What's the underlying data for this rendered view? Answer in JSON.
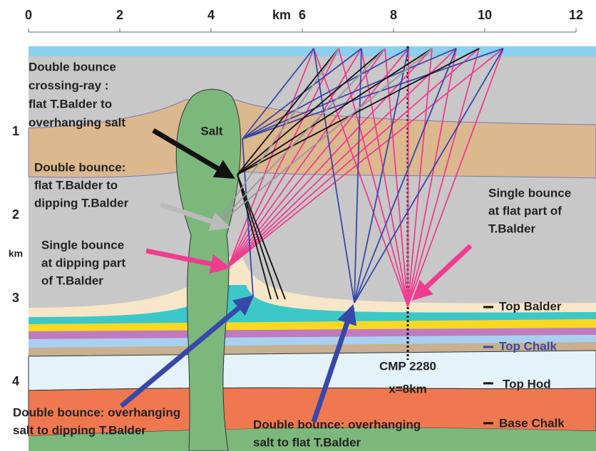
{
  "x_axis": {
    "ticks": [
      0,
      2,
      4,
      6,
      8,
      10,
      12
    ],
    "unit": "km"
  },
  "y_axis": {
    "ticks": [
      1,
      2,
      3,
      4
    ],
    "unit": "km"
  },
  "salt_label": "Salt",
  "annotations": [
    {
      "lines": [
        "Double bounce",
        "crossing-ray :",
        "flat T.Balder to",
        "overhanging salt"
      ]
    },
    {
      "lines": [
        "Double bounce:",
        "flat T.Balder to",
        "dipping T.Balder"
      ]
    },
    {
      "lines": [
        "Single bounce",
        "at dipping part",
        "of T.Balder"
      ]
    },
    {
      "lines": [
        "Single bounce",
        "at flat part of",
        "T.Balder"
      ]
    },
    {
      "lines": [
        "Double bounce: overhanging",
        "salt to dipping T.Balder"
      ]
    },
    {
      "lines": [
        "Double bounce: overhanging",
        "salt to flat T.Balder"
      ]
    }
  ],
  "horizons": [
    "Top Balder",
    "Top Chalk",
    "Top Hod",
    "Base Chalk"
  ],
  "cmp": {
    "lines": [
      "CMP 2280",
      "x=8km"
    ]
  }
}
